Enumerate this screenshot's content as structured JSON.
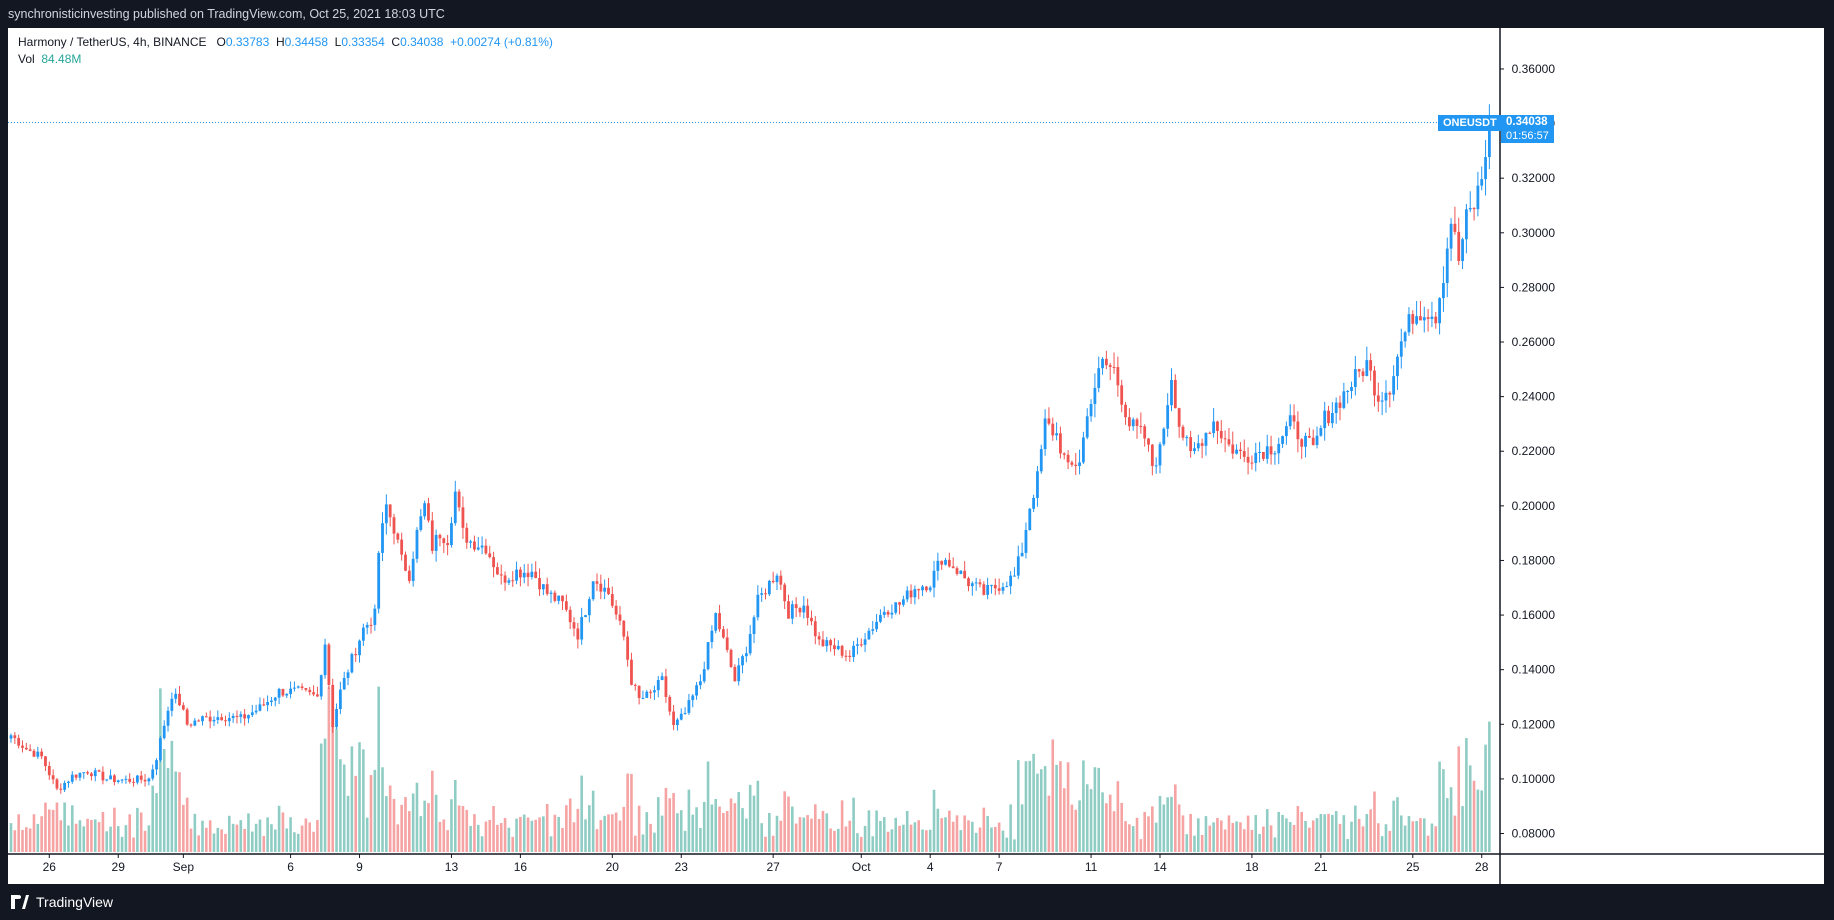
{
  "header": {
    "publisher_line": "synchronisticinvesting published on TradingView.com, Oct 25, 2021 18:03 UTC"
  },
  "legend": {
    "symbol_line": "Harmony / TetherUS, 4h, BINANCE",
    "o_label": "O",
    "o_value": "0.33783",
    "h_label": "H",
    "h_value": "0.34458",
    "l_label": "L",
    "l_value": "0.33354",
    "c_label": "C",
    "c_value": "0.34038",
    "change": "+0.00274 (+0.81%)",
    "vol_label": "Vol",
    "vol_value": "84.48M"
  },
  "last_price": {
    "symbol": "ONEUSDT",
    "price": "0.34038",
    "countdown": "01:56:57"
  },
  "footer": {
    "brand": "TradingView"
  },
  "colors": {
    "up": "#2196f3",
    "down": "#ef5350",
    "vol_up": "#8fcdc4",
    "vol_down": "#f5a3a3",
    "frame": "#131722"
  },
  "chart_data": {
    "type": "candlestick",
    "interval": "4h",
    "y_axis": {
      "range": [
        0.0725,
        0.375
      ],
      "ticks": [
        "0.36000",
        "0.34000",
        "0.32000",
        "0.30000",
        "0.28000",
        "0.26000",
        "0.24000",
        "0.22000",
        "0.20000",
        "0.18000",
        "0.16000",
        "0.14000",
        "0.12000",
        "0.10000",
        "0.08000"
      ],
      "position": "right"
    },
    "x_axis": {
      "labels": [
        {
          "text": "26",
          "bar": 10
        },
        {
          "text": "29",
          "bar": 28
        },
        {
          "text": "Sep",
          "bar": 45
        },
        {
          "text": "6",
          "bar": 73
        },
        {
          "text": "9",
          "bar": 91
        },
        {
          "text": "13",
          "bar": 115
        },
        {
          "text": "16",
          "bar": 133
        },
        {
          "text": "20",
          "bar": 157
        },
        {
          "text": "23",
          "bar": 175
        },
        {
          "text": "27",
          "bar": 199
        },
        {
          "text": "Oct",
          "bar": 222
        },
        {
          "text": "4",
          "bar": 240
        },
        {
          "text": "7",
          "bar": 258
        },
        {
          "text": "11",
          "bar": 282
        },
        {
          "text": "14",
          "bar": 300
        },
        {
          "text": "18",
          "bar": 324
        },
        {
          "text": "21",
          "bar": 342
        },
        {
          "text": "25",
          "bar": 366
        },
        {
          "text": "28",
          "bar": 384
        }
      ],
      "total_slots": 390
    },
    "close_waypoints": [
      [
        0,
        0.116
      ],
      [
        4,
        0.111
      ],
      [
        8,
        0.108
      ],
      [
        12,
        0.096
      ],
      [
        16,
        0.101
      ],
      [
        20,
        0.103
      ],
      [
        25,
        0.1
      ],
      [
        30,
        0.0995
      ],
      [
        36,
        0.1
      ],
      [
        38,
        0.108
      ],
      [
        40,
        0.12
      ],
      [
        42,
        0.131
      ],
      [
        44,
        0.128
      ],
      [
        46,
        0.12
      ],
      [
        50,
        0.122
      ],
      [
        55,
        0.123
      ],
      [
        60,
        0.122
      ],
      [
        65,
        0.126
      ],
      [
        70,
        0.132
      ],
      [
        75,
        0.132
      ],
      [
        80,
        0.13
      ],
      [
        82,
        0.15
      ],
      [
        84,
        0.12
      ],
      [
        86,
        0.132
      ],
      [
        88,
        0.14
      ],
      [
        92,
        0.155
      ],
      [
        95,
        0.16
      ],
      [
        96,
        0.183
      ],
      [
        98,
        0.2
      ],
      [
        100,
        0.192
      ],
      [
        102,
        0.18
      ],
      [
        104,
        0.175
      ],
      [
        106,
        0.19
      ],
      [
        108,
        0.2
      ],
      [
        110,
        0.185
      ],
      [
        112,
        0.19
      ],
      [
        114,
        0.188
      ],
      [
        116,
        0.205
      ],
      [
        118,
        0.19
      ],
      [
        120,
        0.187
      ],
      [
        124,
        0.185
      ],
      [
        128,
        0.173
      ],
      [
        132,
        0.176
      ],
      [
        136,
        0.176
      ],
      [
        140,
        0.168
      ],
      [
        144,
        0.164
      ],
      [
        148,
        0.153
      ],
      [
        150,
        0.162
      ],
      [
        152,
        0.174
      ],
      [
        156,
        0.168
      ],
      [
        160,
        0.152
      ],
      [
        162,
        0.136
      ],
      [
        164,
        0.129
      ],
      [
        167,
        0.131
      ],
      [
        170,
        0.136
      ],
      [
        173,
        0.119
      ],
      [
        176,
        0.124
      ],
      [
        180,
        0.136
      ],
      [
        184,
        0.16
      ],
      [
        187,
        0.146
      ],
      [
        189,
        0.136
      ],
      [
        192,
        0.148
      ],
      [
        195,
        0.165
      ],
      [
        200,
        0.176
      ],
      [
        203,
        0.161
      ],
      [
        207,
        0.164
      ],
      [
        211,
        0.15
      ],
      [
        215,
        0.148
      ],
      [
        219,
        0.145
      ],
      [
        222,
        0.151
      ],
      [
        225,
        0.156
      ],
      [
        228,
        0.162
      ],
      [
        232,
        0.164
      ],
      [
        236,
        0.17
      ],
      [
        240,
        0.172
      ],
      [
        243,
        0.181
      ],
      [
        246,
        0.178
      ],
      [
        250,
        0.172
      ],
      [
        254,
        0.168
      ],
      [
        258,
        0.171
      ],
      [
        262,
        0.174
      ],
      [
        264,
        0.184
      ],
      [
        266,
        0.2
      ],
      [
        268,
        0.21
      ],
      [
        270,
        0.23
      ],
      [
        273,
        0.226
      ],
      [
        276,
        0.213
      ],
      [
        279,
        0.217
      ],
      [
        282,
        0.24
      ],
      [
        285,
        0.252
      ],
      [
        288,
        0.25
      ],
      [
        292,
        0.23
      ],
      [
        296,
        0.225
      ],
      [
        298,
        0.215
      ],
      [
        300,
        0.22
      ],
      [
        303,
        0.248
      ],
      [
        305,
        0.23
      ],
      [
        308,
        0.218
      ],
      [
        311,
        0.225
      ],
      [
        314,
        0.231
      ],
      [
        318,
        0.222
      ],
      [
        322,
        0.218
      ],
      [
        326,
        0.22
      ],
      [
        330,
        0.222
      ],
      [
        334,
        0.23
      ],
      [
        337,
        0.225
      ],
      [
        340,
        0.22
      ],
      [
        343,
        0.232
      ],
      [
        346,
        0.237
      ],
      [
        350,
        0.245
      ],
      [
        354,
        0.252
      ],
      [
        357,
        0.24
      ],
      [
        360,
        0.244
      ],
      [
        363,
        0.26
      ],
      [
        366,
        0.27
      ],
      [
        369,
        0.272
      ],
      [
        372,
        0.27
      ],
      [
        374,
        0.285
      ],
      [
        376,
        0.305
      ],
      [
        378,
        0.29
      ],
      [
        380,
        0.305
      ],
      [
        382,
        0.31
      ],
      [
        384,
        0.32
      ],
      [
        386,
        0.3404
      ]
    ],
    "volume_scale_max": 0.147,
    "last_bar_slot": 386
  }
}
